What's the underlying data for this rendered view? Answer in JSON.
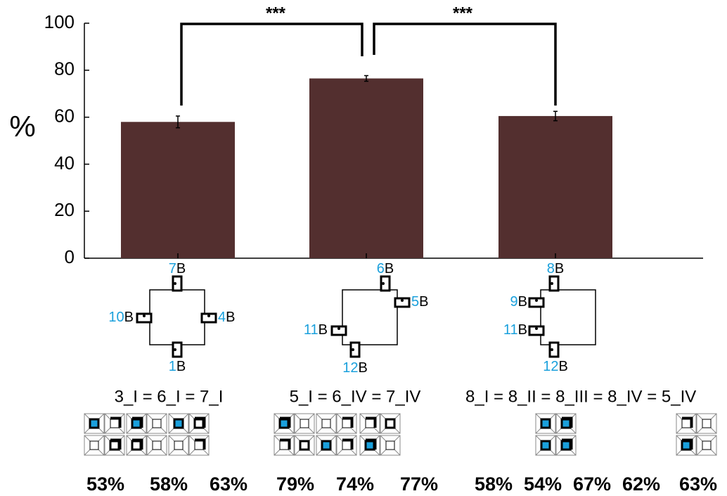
{
  "chart_data": {
    "type": "bar",
    "ylabel": "%",
    "categories": [
      null,
      null,
      null
    ],
    "values": [
      58,
      76.5,
      60.5
    ],
    "errors": [
      2.5,
      1.2,
      2
    ],
    "color": "#532f2f",
    "ylim": [
      0,
      100
    ],
    "yticks": [
      0,
      20,
      40,
      60,
      80,
      100
    ],
    "significance": [
      "***",
      "***"
    ]
  },
  "diagrams": [
    {
      "ports": [
        {
          "number": "7",
          "suffix": "B"
        },
        {
          "number": "10",
          "suffix": "B"
        },
        {
          "number": "4",
          "suffix": "B"
        },
        {
          "number": "1",
          "suffix": "B"
        }
      ]
    },
    {
      "ports": [
        {
          "number": "6",
          "suffix": "B"
        },
        {
          "number": "5",
          "suffix": "B"
        },
        {
          "number": "11",
          "suffix": "B"
        },
        {
          "number": "12",
          "suffix": "B"
        }
      ]
    },
    {
      "ports": [
        {
          "number": "8",
          "suffix": "B"
        },
        {
          "number": "9",
          "suffix": "B"
        },
        {
          "number": "11",
          "suffix": "B"
        },
        {
          "number": "12",
          "suffix": "B"
        }
      ]
    }
  ],
  "panels": [
    {
      "equation": "3_I  =  6_I  =  7_I",
      "percents": [
        "53%",
        "58%",
        "63%"
      ]
    },
    {
      "equation": "5_I = 6_IV = 7_IV",
      "percents": [
        "79%",
        "74%",
        "77%"
      ]
    },
    {
      "equation": "8_I = 8_II = 8_III = 8_IV = 5_IV",
      "percents": [
        "58%",
        "54%",
        "67%",
        "62%",
        "63%"
      ]
    }
  ]
}
